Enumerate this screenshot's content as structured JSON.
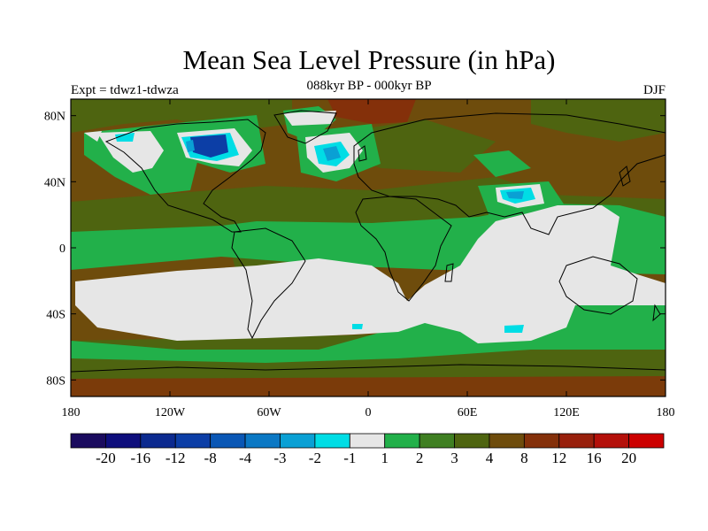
{
  "title": "Mean Sea Level Pressure (in hPa)",
  "subtitle": "088kyr BP - 000kyr BP",
  "experiment": "Expt = tdwz1-tdwza",
  "season": "DJF",
  "axes": {
    "lat_ticks": [
      "80N",
      "40N",
      "0",
      "40S",
      "80S"
    ],
    "lon_ticks": [
      "180",
      "120W",
      "60W",
      "0",
      "60E",
      "120E",
      "180"
    ]
  },
  "colorbar": {
    "labels": [
      "-20",
      "-16",
      "-12",
      "-8",
      "-4",
      "-3",
      "-2",
      "-1",
      "1",
      "2",
      "3",
      "4",
      "8",
      "12",
      "16",
      "20"
    ],
    "colors": [
      "#1a0b5e",
      "#0e0e7c",
      "#0c2a8f",
      "#0c3ea6",
      "#0a57b5",
      "#0b78c4",
      "#0aa0d4",
      "#00dde5",
      "#e6e6e6",
      "#22b04a",
      "#3f7f22",
      "#4e6410",
      "#6e4c0c",
      "#84300a",
      "#98200c",
      "#b4100a",
      "#cc0000"
    ]
  },
  "map_colors": {
    "background": "#6e4c0c",
    "olive": "#4e6410",
    "green": "#22b04a",
    "grey": "#e6e6e6",
    "cyan": "#00dde5",
    "lightblue": "#0aa0d4",
    "blue": "#0c3ea6",
    "brown_dark": "#84300a"
  }
}
